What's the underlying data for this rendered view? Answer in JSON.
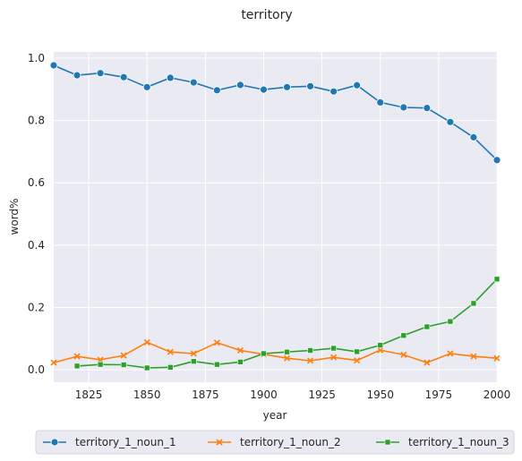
{
  "chart_data": {
    "type": "line",
    "title": "territory",
    "xlabel": "year",
    "ylabel": "word%",
    "xlim": [
      1810,
      2000
    ],
    "ylim": [
      -0.04,
      1.02
    ],
    "xticks": [
      1825,
      1850,
      1875,
      1900,
      1925,
      1950,
      1975,
      2000
    ],
    "yticks": [
      0.0,
      0.2,
      0.4,
      0.6,
      0.8,
      1.0
    ],
    "ytick_labels": [
      "0.0",
      "0.2",
      "0.4",
      "0.6",
      "0.8",
      "1.0"
    ],
    "grid": true,
    "background": "#eaeaf2",
    "legend_position": "bottom-center",
    "series": [
      {
        "name": "territory_1_noun_1",
        "color": "#1f77b4",
        "marker": "circle",
        "x": [
          1810,
          1820,
          1830,
          1840,
          1850,
          1860,
          1870,
          1880,
          1890,
          1900,
          1910,
          1920,
          1930,
          1940,
          1950,
          1960,
          1970,
          1980,
          1990,
          2000
        ],
        "y": [
          0.977,
          0.945,
          0.952,
          0.939,
          0.907,
          0.937,
          0.922,
          0.897,
          0.914,
          0.899,
          0.907,
          0.91,
          0.893,
          0.913,
          0.858,
          0.842,
          0.84,
          0.795,
          0.746,
          0.673
        ]
      },
      {
        "name": "territory_1_noun_2",
        "color": "#ff7f0e",
        "marker": "x",
        "x": [
          1810,
          1820,
          1830,
          1840,
          1850,
          1860,
          1870,
          1880,
          1890,
          1900,
          1910,
          1920,
          1930,
          1940,
          1950,
          1960,
          1970,
          1980,
          1990,
          2000
        ],
        "y": [
          0.023,
          0.043,
          0.032,
          0.046,
          0.088,
          0.057,
          0.052,
          0.087,
          0.062,
          0.05,
          0.037,
          0.029,
          0.04,
          0.03,
          0.063,
          0.048,
          0.023,
          0.052,
          0.043,
          0.037
        ]
      },
      {
        "name": "territory_1_noun_3",
        "color": "#2ca02c",
        "marker": "square",
        "x": [
          1820,
          1830,
          1840,
          1850,
          1860,
          1870,
          1880,
          1890,
          1900,
          1910,
          1920,
          1930,
          1940,
          1950,
          1960,
          1970,
          1980,
          1990,
          2000
        ],
        "y": [
          0.012,
          0.017,
          0.016,
          0.006,
          0.008,
          0.027,
          0.017,
          0.025,
          0.052,
          0.057,
          0.062,
          0.069,
          0.058,
          0.079,
          0.11,
          0.138,
          0.155,
          0.213,
          0.291
        ]
      }
    ]
  }
}
